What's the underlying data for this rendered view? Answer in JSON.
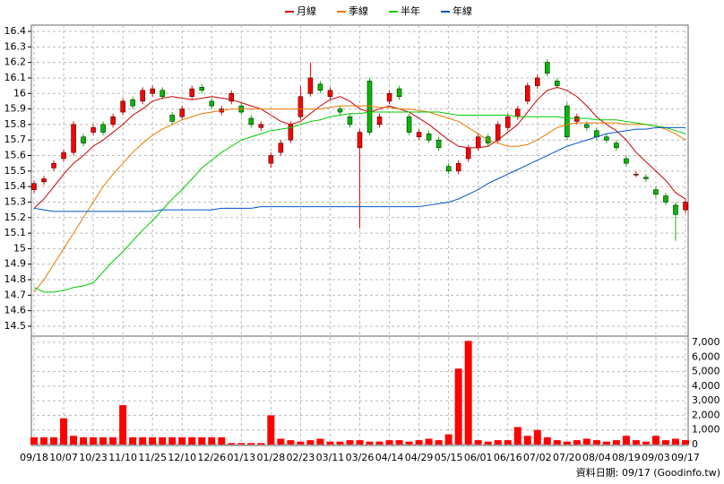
{
  "chart_data": {
    "type": "candlestick",
    "categories": [
      "09/18",
      null,
      null,
      "10/07",
      null,
      null,
      "10/23",
      null,
      null,
      "11/10",
      null,
      null,
      "11/25",
      null,
      null,
      "12/10",
      null,
      null,
      "12/26",
      null,
      null,
      "01/13",
      null,
      null,
      "01/28",
      null,
      null,
      "02/23",
      null,
      null,
      "03/11",
      null,
      null,
      "03/26",
      null,
      null,
      "04/14",
      null,
      null,
      "04/29",
      null,
      null,
      "05/15",
      null,
      null,
      "06/01",
      null,
      null,
      "06/16",
      null,
      null,
      "07/02",
      null,
      null,
      "07/20",
      null,
      null,
      "08/04",
      null,
      null,
      "08/19",
      null,
      null,
      "09/03",
      null,
      null,
      "09/17"
    ],
    "open": [
      15.38,
      15.43,
      15.52,
      15.58,
      15.62,
      15.72,
      15.75,
      15.8,
      15.8,
      15.88,
      15.96,
      15.95,
      16.0,
      16.02,
      15.86,
      15.85,
      15.98,
      16.04,
      15.95,
      15.88,
      15.95,
      15.92,
      15.84,
      15.78,
      15.55,
      15.62,
      15.7,
      15.85,
      16.0,
      16.06,
      15.98,
      15.9,
      15.85,
      15.65,
      16.08,
      15.8,
      15.95,
      16.03,
      15.85,
      15.72,
      15.74,
      15.7,
      15.53,
      15.5,
      15.58,
      15.65,
      15.72,
      15.7,
      15.78,
      15.85,
      15.95,
      16.05,
      16.2,
      16.08,
      15.92,
      15.82,
      15.8,
      15.76,
      15.72,
      15.68,
      15.58,
      15.48,
      15.46,
      15.38,
      15.34,
      15.28,
      15.25
    ],
    "high": [
      15.44,
      15.47,
      15.57,
      15.64,
      15.82,
      15.74,
      15.8,
      15.82,
      15.87,
      15.97,
      15.98,
      16.04,
      16.05,
      16.04,
      15.88,
      15.92,
      16.05,
      16.06,
      15.97,
      15.92,
      16.02,
      15.94,
      15.86,
      15.82,
      15.62,
      15.7,
      15.82,
      16.05,
      16.2,
      16.08,
      16.04,
      15.92,
      15.87,
      15.77,
      16.1,
      15.87,
      16.02,
      16.05,
      15.87,
      15.77,
      15.76,
      15.72,
      15.55,
      15.57,
      15.67,
      15.74,
      15.74,
      15.82,
      15.87,
      15.92,
      16.07,
      16.12,
      16.22,
      16.1,
      15.94,
      15.87,
      15.82,
      15.78,
      15.74,
      15.7,
      15.6,
      15.5,
      15.48,
      15.4,
      15.36,
      15.3,
      15.32
    ],
    "low": [
      15.36,
      15.41,
      15.5,
      15.56,
      15.6,
      15.66,
      15.73,
      15.73,
      15.78,
      15.86,
      15.9,
      15.93,
      15.98,
      15.96,
      15.8,
      15.83,
      15.96,
      16.0,
      15.9,
      15.86,
      15.93,
      15.86,
      15.78,
      15.76,
      15.52,
      15.6,
      15.68,
      15.83,
      15.98,
      16.0,
      15.96,
      15.86,
      15.78,
      15.13,
      15.73,
      15.78,
      15.93,
      15.96,
      15.73,
      15.7,
      15.68,
      15.63,
      15.48,
      15.48,
      15.56,
      15.63,
      15.66,
      15.68,
      15.76,
      15.83,
      15.93,
      16.03,
      16.11,
      16.03,
      15.7,
      15.8,
      15.76,
      15.7,
      15.68,
      15.63,
      15.53,
      15.46,
      15.43,
      15.33,
      15.28,
      15.05,
      15.23
    ],
    "close": [
      15.42,
      15.45,
      15.55,
      15.62,
      15.8,
      15.68,
      15.78,
      15.75,
      15.85,
      15.95,
      15.92,
      16.02,
      16.03,
      15.98,
      15.82,
      15.9,
      16.03,
      16.02,
      15.92,
      15.9,
      16.0,
      15.88,
      15.8,
      15.8,
      15.6,
      15.68,
      15.8,
      15.98,
      16.1,
      16.02,
      16.02,
      15.88,
      15.8,
      15.75,
      15.75,
      15.85,
      16.0,
      15.98,
      15.75,
      15.75,
      15.7,
      15.65,
      15.5,
      15.55,
      15.65,
      15.72,
      15.68,
      15.8,
      15.85,
      15.9,
      16.05,
      16.1,
      16.13,
      16.05,
      15.72,
      15.85,
      15.78,
      15.72,
      15.7,
      15.65,
      15.55,
      15.48,
      15.45,
      15.35,
      15.3,
      15.22,
      15.3
    ],
    "up_color": "#ff0000",
    "down_color": "#00bb00",
    "series": [
      {
        "name": "月線",
        "color": "#cc0000",
        "values": [
          15.26,
          15.32,
          15.4,
          15.48,
          15.55,
          15.6,
          15.66,
          15.7,
          15.75,
          15.8,
          15.86,
          15.9,
          15.95,
          15.97,
          15.98,
          15.97,
          15.96,
          15.97,
          15.98,
          15.97,
          15.96,
          15.94,
          15.92,
          15.9,
          15.86,
          15.82,
          15.8,
          15.82,
          15.87,
          15.92,
          15.96,
          15.98,
          15.95,
          15.9,
          15.88,
          15.9,
          15.92,
          15.9,
          15.88,
          15.84,
          15.8,
          15.75,
          15.7,
          15.66,
          15.65,
          15.65,
          15.66,
          15.7,
          15.75,
          15.8,
          15.88,
          15.96,
          16.02,
          16.04,
          16.02,
          15.98,
          15.92,
          15.85,
          15.8,
          15.76,
          15.7,
          15.62,
          15.56,
          15.5,
          15.44,
          15.36,
          15.32
        ]
      },
      {
        "name": "季線",
        "color": "#ee7700",
        "values": [
          14.72,
          14.8,
          14.9,
          15.0,
          15.1,
          15.2,
          15.3,
          15.4,
          15.48,
          15.55,
          15.62,
          15.68,
          15.73,
          15.77,
          15.8,
          15.83,
          15.85,
          15.87,
          15.88,
          15.89,
          15.9,
          15.9,
          15.9,
          15.9,
          15.9,
          15.9,
          15.9,
          15.9,
          15.9,
          15.9,
          15.91,
          15.92,
          15.92,
          15.92,
          15.92,
          15.91,
          15.91,
          15.9,
          15.9,
          15.89,
          15.88,
          15.86,
          15.84,
          15.82,
          15.78,
          15.74,
          15.7,
          15.68,
          15.66,
          15.66,
          15.67,
          15.7,
          15.74,
          15.78,
          15.8,
          15.81,
          15.81,
          15.81,
          15.81,
          15.81,
          15.8,
          15.8,
          15.8,
          15.79,
          15.77,
          15.74,
          15.7
        ]
      },
      {
        "name": "半年",
        "color": "#00cc00",
        "values": [
          14.75,
          14.72,
          14.72,
          14.73,
          14.75,
          14.76,
          14.78,
          14.85,
          14.92,
          14.98,
          15.05,
          15.12,
          15.18,
          15.25,
          15.32,
          15.38,
          15.45,
          15.52,
          15.57,
          15.62,
          15.66,
          15.7,
          15.72,
          15.74,
          15.76,
          15.77,
          15.78,
          15.8,
          15.82,
          15.83,
          15.85,
          15.86,
          15.87,
          15.87,
          15.88,
          15.88,
          15.88,
          15.88,
          15.88,
          15.88,
          15.88,
          15.88,
          15.87,
          15.86,
          15.86,
          15.86,
          15.86,
          15.86,
          15.86,
          15.85,
          15.85,
          15.85,
          15.85,
          15.85,
          15.84,
          15.84,
          15.84,
          15.83,
          15.83,
          15.83,
          15.82,
          15.81,
          15.8,
          15.79,
          15.78,
          15.76,
          15.74
        ]
      },
      {
        "name": "年線",
        "color": "#0055cc",
        "values": [
          15.26,
          15.25,
          15.24,
          15.24,
          15.24,
          15.24,
          15.24,
          15.24,
          15.24,
          15.24,
          15.24,
          15.24,
          15.24,
          15.25,
          15.25,
          15.25,
          15.25,
          15.25,
          15.25,
          15.26,
          15.26,
          15.26,
          15.26,
          15.27,
          15.27,
          15.27,
          15.27,
          15.27,
          15.27,
          15.27,
          15.27,
          15.27,
          15.27,
          15.27,
          15.27,
          15.27,
          15.27,
          15.27,
          15.27,
          15.27,
          15.28,
          15.29,
          15.3,
          15.32,
          15.35,
          15.38,
          15.42,
          15.45,
          15.48,
          15.51,
          15.54,
          15.57,
          15.6,
          15.63,
          15.66,
          15.68,
          15.7,
          15.72,
          15.74,
          15.75,
          15.76,
          15.77,
          15.77,
          15.78,
          15.78,
          15.78,
          15.78
        ]
      }
    ],
    "ylim": [
      14.5,
      16.4
    ],
    "yticks": [
      14.5,
      14.6,
      14.7,
      14.8,
      14.9,
      15,
      15.1,
      15.2,
      15.3,
      15.4,
      15.5,
      15.6,
      15.7,
      15.8,
      15.9,
      16,
      16.1,
      16.2,
      16.3,
      16.4
    ],
    "grid": true,
    "volume": {
      "color": "#ff0000",
      "values": [
        500,
        500,
        500,
        1800,
        600,
        500,
        500,
        500,
        500,
        2700,
        500,
        500,
        500,
        500,
        500,
        500,
        500,
        500,
        500,
        500,
        100,
        100,
        100,
        100,
        2000,
        400,
        300,
        200,
        300,
        400,
        200,
        200,
        300,
        300,
        200,
        200,
        300,
        300,
        200,
        300,
        400,
        300,
        700,
        5200,
        7100,
        300,
        200,
        300,
        300,
        1200,
        600,
        1000,
        500,
        300,
        200,
        300,
        400,
        300,
        200,
        300,
        600,
        300,
        200,
        600,
        300,
        400,
        300
      ],
      "ylim": [
        0,
        7000
      ],
      "yticks": [
        0,
        {
          "value": 1000,
          "label": "1,000"
        },
        {
          "value": 2000,
          "label": "2,000"
        },
        {
          "value": 3000,
          "label": "3,000"
        },
        {
          "value": 4000,
          "label": "4,000"
        },
        {
          "value": 5000,
          "label": "5,000"
        },
        {
          "value": 6000,
          "label": "6,000"
        },
        {
          "value": 7000,
          "label": "7,000"
        }
      ]
    },
    "footer": "資料日期: 09/17 (Goodinfo.tw)"
  }
}
